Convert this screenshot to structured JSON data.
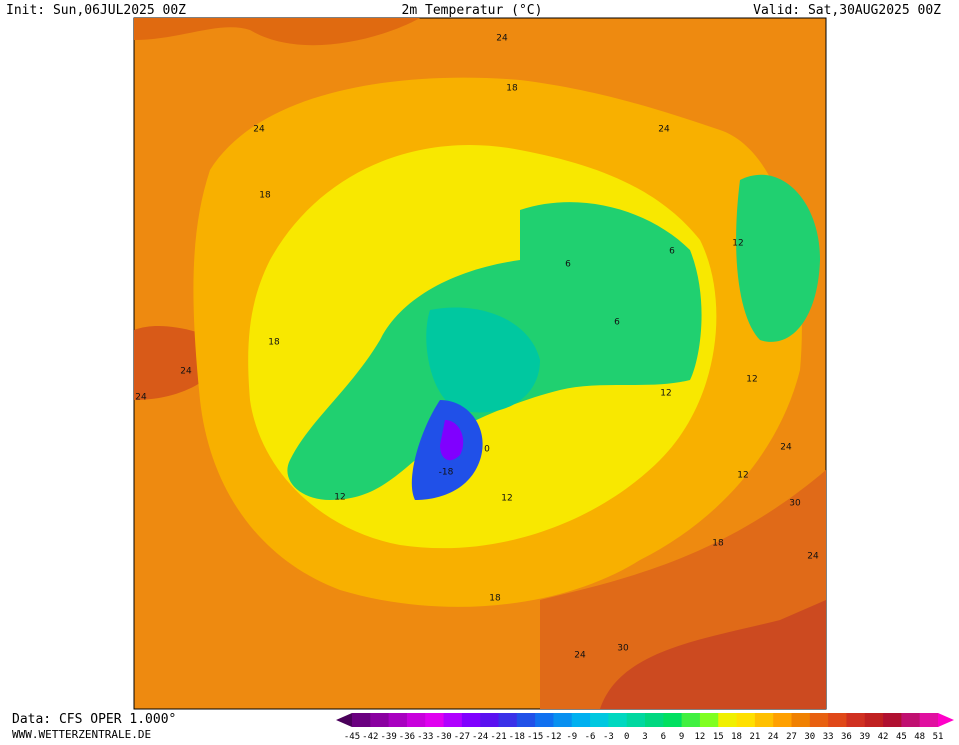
{
  "header": {
    "init": "Init: Sun,06JUL2025 00Z",
    "title": "2m Temperatur (°C)",
    "valid": "Valid: Sat,30AUG2025 00Z"
  },
  "footer": {
    "data_source": "Data: CFS OPER 1.000°",
    "website": "WWW.WETTERZENTRALE.DE"
  },
  "map": {
    "contour_labels": [
      "24",
      "18",
      "24",
      "18",
      "12",
      "6",
      "6",
      "6",
      "18",
      "24",
      "24",
      "12",
      "12",
      "0",
      "-18",
      "12",
      "12",
      "24",
      "12",
      "30",
      "18",
      "24",
      "18",
      "30",
      "24",
      "24"
    ]
  },
  "legend": {
    "labels": [
      -45,
      -42,
      -39,
      -36,
      -33,
      -30,
      -27,
      -24,
      -21,
      -18,
      -15,
      -12,
      -9,
      -6,
      -3,
      0,
      3,
      6,
      9,
      12,
      15,
      18,
      21,
      24,
      27,
      30,
      33,
      36,
      39,
      42,
      45,
      48,
      51
    ],
    "colors": [
      "#4a005a",
      "#6a0080",
      "#8a00a0",
      "#a800c0",
      "#c800dc",
      "#e000f0",
      "#b000ff",
      "#8000ff",
      "#5a10f0",
      "#3a30e8",
      "#2050e8",
      "#1070f0",
      "#0890f0",
      "#00b0f0",
      "#00c8e0",
      "#00d8c0",
      "#00d8a0",
      "#00d880",
      "#00e060",
      "#40f040",
      "#80ff20",
      "#f0f000",
      "#ffe000",
      "#ffc000",
      "#ffa000",
      "#f08000",
      "#e86010",
      "#e04818",
      "#d03020",
      "#c02020",
      "#b01030",
      "#c01070",
      "#e010a0",
      "#ff00c8"
    ]
  }
}
